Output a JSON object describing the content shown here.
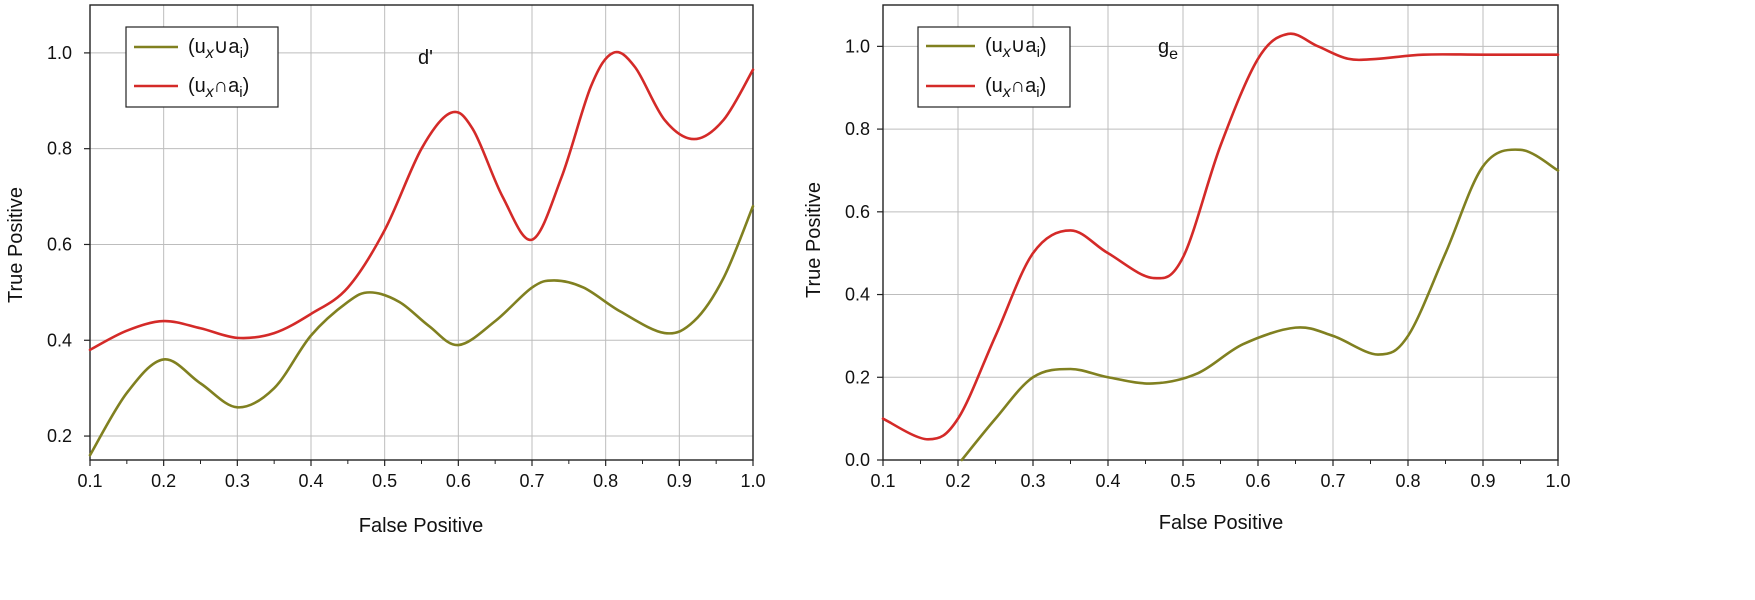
{
  "chart_data": [
    {
      "type": "line",
      "annotation": "d'",
      "xlabel": "False Positive",
      "ylabel": "True Positive",
      "xlim": [
        0.1,
        1.0
      ],
      "ylim": [
        0.15,
        1.1
      ],
      "xticks": [
        "0.1",
        "0.2",
        "0.3",
        "0.4",
        "0.5",
        "0.6",
        "0.7",
        "0.8",
        "0.9",
        "1.0"
      ],
      "yticks": [
        "0.2",
        "0.4",
        "0.6",
        "0.8",
        "1.0"
      ],
      "grid": true,
      "legend_position": "top-left",
      "series": [
        {
          "name": "(u_x ∪ a_i)",
          "color": "#808020",
          "x": [
            0.1,
            0.15,
            0.2,
            0.25,
            0.3,
            0.35,
            0.4,
            0.45,
            0.48,
            0.52,
            0.56,
            0.6,
            0.65,
            0.7,
            0.73,
            0.77,
            0.82,
            0.88,
            0.92,
            0.96,
            1.0
          ],
          "y": [
            0.16,
            0.29,
            0.36,
            0.31,
            0.26,
            0.3,
            0.41,
            0.48,
            0.5,
            0.48,
            0.43,
            0.39,
            0.44,
            0.51,
            0.525,
            0.51,
            0.46,
            0.415,
            0.44,
            0.53,
            0.68
          ]
        },
        {
          "name": "(u_x ∩ a_i)",
          "color": "#d42a28",
          "x": [
            0.1,
            0.15,
            0.2,
            0.25,
            0.3,
            0.35,
            0.4,
            0.45,
            0.5,
            0.55,
            0.59,
            0.62,
            0.66,
            0.7,
            0.74,
            0.78,
            0.81,
            0.84,
            0.88,
            0.92,
            0.96,
            1.0
          ],
          "y": [
            0.38,
            0.42,
            0.44,
            0.425,
            0.405,
            0.415,
            0.455,
            0.51,
            0.63,
            0.8,
            0.875,
            0.84,
            0.7,
            0.61,
            0.74,
            0.93,
            1.0,
            0.97,
            0.86,
            0.82,
            0.86,
            0.965
          ]
        }
      ]
    },
    {
      "type": "line",
      "annotation": "g_e",
      "xlabel": "False Positive",
      "ylabel": "True Positive",
      "xlim": [
        0.1,
        1.0
      ],
      "ylim": [
        0.0,
        1.1
      ],
      "xticks": [
        "0.1",
        "0.2",
        "0.3",
        "0.4",
        "0.5",
        "0.6",
        "0.7",
        "0.8",
        "0.9",
        "1.0"
      ],
      "yticks": [
        "0.0",
        "0.2",
        "0.4",
        "0.6",
        "0.8",
        "1.0"
      ],
      "grid": true,
      "legend_position": "top-left",
      "series": [
        {
          "name": "(u_x ∪ a_i)",
          "color": "#808020",
          "x": [
            0.205,
            0.25,
            0.3,
            0.35,
            0.4,
            0.46,
            0.52,
            0.58,
            0.65,
            0.7,
            0.76,
            0.8,
            0.85,
            0.9,
            0.95,
            1.0
          ],
          "y": [
            0.0,
            0.1,
            0.2,
            0.22,
            0.2,
            0.185,
            0.21,
            0.28,
            0.32,
            0.3,
            0.255,
            0.3,
            0.5,
            0.71,
            0.75,
            0.7
          ]
        },
        {
          "name": "(u_x ∩ a_i)",
          "color": "#d42a28",
          "x": [
            0.1,
            0.16,
            0.2,
            0.25,
            0.3,
            0.35,
            0.4,
            0.46,
            0.5,
            0.55,
            0.6,
            0.64,
            0.68,
            0.72,
            0.76,
            0.82,
            0.9,
            1.0
          ],
          "y": [
            0.1,
            0.05,
            0.1,
            0.3,
            0.5,
            0.555,
            0.5,
            0.44,
            0.49,
            0.76,
            0.97,
            1.03,
            1.0,
            0.97,
            0.97,
            0.98,
            0.98,
            0.98
          ]
        }
      ]
    }
  ]
}
